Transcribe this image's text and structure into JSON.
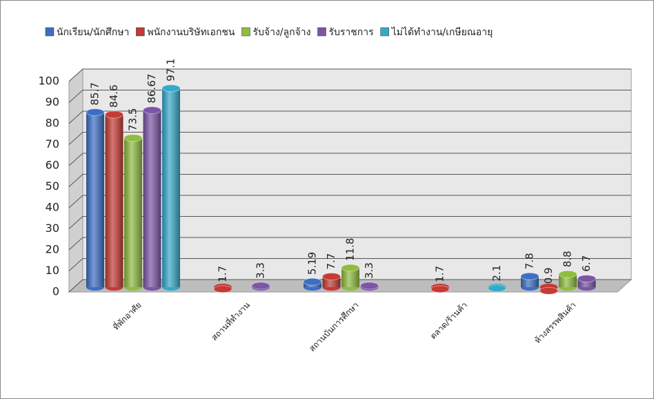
{
  "chart_data": {
    "type": "bar3d",
    "categories": [
      "ที่พักอาศัย",
      "สถานที่ทำงาน",
      "สถานบันการศึกษา",
      "ตลาด/ร้านค้า",
      "ห้างสรรพสินค้า"
    ],
    "series": [
      {
        "name": "นักเรียน/นักศึกษา",
        "color": "#3b6fc5",
        "values": [
          85.7,
          null,
          5.19,
          null,
          7.8
        ]
      },
      {
        "name": "พนักงานบริษัทเอกชน",
        "color": "#c63a34",
        "values": [
          84.6,
          1.7,
          7.7,
          1.7,
          0.9
        ]
      },
      {
        "name": "รับจ้าง/ลูกจ้าง",
        "color": "#8fbd3f",
        "values": [
          73.5,
          null,
          11.8,
          null,
          8.8
        ]
      },
      {
        "name": "รับราชการ",
        "color": "#7c55a6",
        "values": [
          86.67,
          3.3,
          3.3,
          null,
          6.7
        ]
      },
      {
        "name": "ไม่ได้ทำงาน/เกษียณอายุ",
        "color": "#36a9c9",
        "values": [
          97.1,
          null,
          null,
          2.1,
          null
        ]
      }
    ],
    "ylim": [
      0,
      100
    ],
    "yticks": [
      0,
      10,
      20,
      30,
      40,
      50,
      60,
      70,
      80,
      90,
      100
    ],
    "grid": true,
    "legend": "top"
  }
}
